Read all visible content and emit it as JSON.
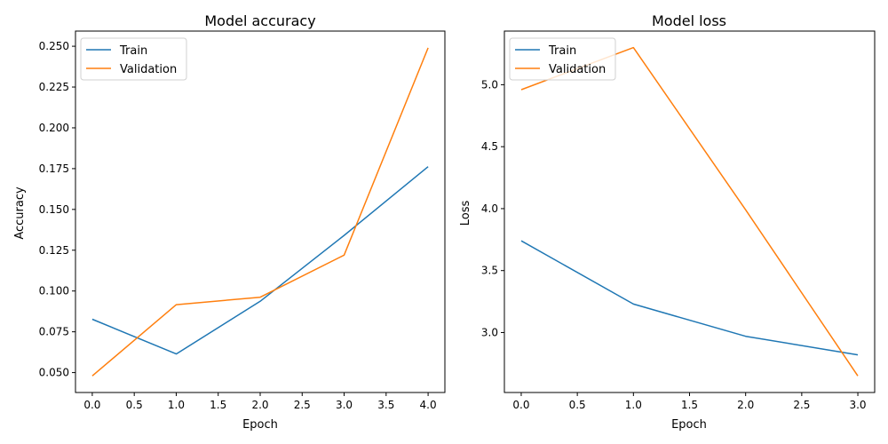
{
  "chart_data": [
    {
      "type": "line",
      "title": "Model accuracy",
      "xlabel": "Epoch",
      "ylabel": "Accuracy",
      "x": [
        0,
        1,
        2,
        3,
        4
      ],
      "xticks": [
        "0.0",
        "0.5",
        "1.0",
        "1.5",
        "2.0",
        "2.5",
        "3.0",
        "3.5",
        "4.0"
      ],
      "yticks": [
        "0.050",
        "0.075",
        "0.100",
        "0.125",
        "0.150",
        "0.175",
        "0.200",
        "0.225",
        "0.250"
      ],
      "xlim": [
        -0.2,
        4.2
      ],
      "ylim": [
        0.0378,
        0.2593
      ],
      "grid": false,
      "legend": "upper left",
      "series": [
        {
          "name": "Train",
          "color": "#1f77b4",
          "values": [
            0.0827,
            0.0614,
            0.0937,
            0.1341,
            0.1762
          ]
        },
        {
          "name": "Validation",
          "color": "#ff7f0e",
          "values": [
            0.048,
            0.0916,
            0.0962,
            0.122,
            0.249
          ]
        }
      ]
    },
    {
      "type": "line",
      "title": "Model loss",
      "xlabel": "Epoch",
      "ylabel": "Loss",
      "x": [
        0,
        1,
        2,
        3
      ],
      "xticks": [
        "0.0",
        "0.5",
        "1.0",
        "1.5",
        "2.0",
        "2.5",
        "3.0"
      ],
      "yticks": [
        "3.0",
        "3.5",
        "4.0",
        "4.5",
        "5.0"
      ],
      "xlim": [
        -0.15,
        3.15
      ],
      "ylim": [
        2.516,
        5.433
      ],
      "grid": false,
      "legend": "upper left",
      "series": [
        {
          "name": "Train",
          "color": "#1f77b4",
          "values": [
            3.74,
            3.23,
            2.97,
            2.82
          ]
        },
        {
          "name": "Validation",
          "color": "#ff7f0e",
          "values": [
            4.96,
            5.3,
            3.99,
            2.65
          ]
        }
      ]
    }
  ]
}
